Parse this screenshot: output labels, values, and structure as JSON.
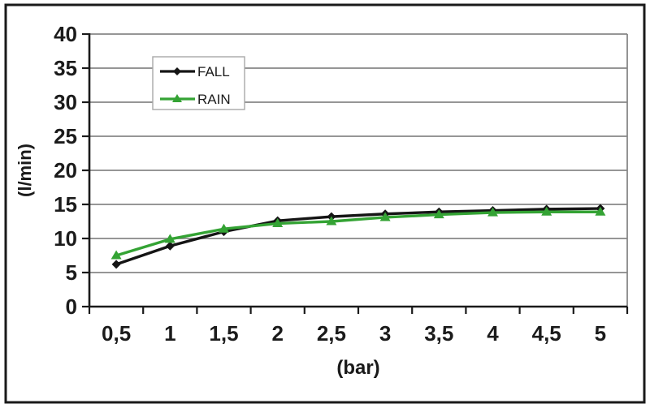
{
  "figure": {
    "background_color": "#ffffff",
    "border_color": "#1a1a1a"
  },
  "chart_data": {
    "type": "line",
    "title": "",
    "xlabel": "(bar)",
    "ylabel": "(l/min)",
    "x_categories": [
      "0,5",
      "1",
      "1,5",
      "2",
      "2,5",
      "3",
      "3,5",
      "4",
      "4,5",
      "5"
    ],
    "x_values": [
      0.5,
      1,
      1.5,
      2,
      2.5,
      3,
      3.5,
      4,
      4.5,
      5
    ],
    "y_tick_labels": [
      "0",
      "5",
      "10",
      "15",
      "20",
      "25",
      "30",
      "35",
      "40"
    ],
    "ylim": [
      0,
      40
    ],
    "ytick_step": 5,
    "grid": "horizontal",
    "grid_color": "#878787",
    "axis_color": "#1a1a1a",
    "legend": {
      "position": "top-left-inside",
      "border_color": "#a9a9a9",
      "fill": "#ffffff",
      "entries": [
        "FALL",
        "RAIN"
      ]
    },
    "series": [
      {
        "name": "FALL",
        "color": "#151515",
        "marker": "diamond",
        "values": [
          6.2,
          8.9,
          11.0,
          12.6,
          13.2,
          13.6,
          13.9,
          14.1,
          14.3,
          14.4
        ]
      },
      {
        "name": "RAIN",
        "color": "#34a334",
        "marker": "triangle",
        "values": [
          7.5,
          9.9,
          11.4,
          12.2,
          12.5,
          13.1,
          13.5,
          13.8,
          13.9,
          13.9
        ]
      }
    ]
  }
}
